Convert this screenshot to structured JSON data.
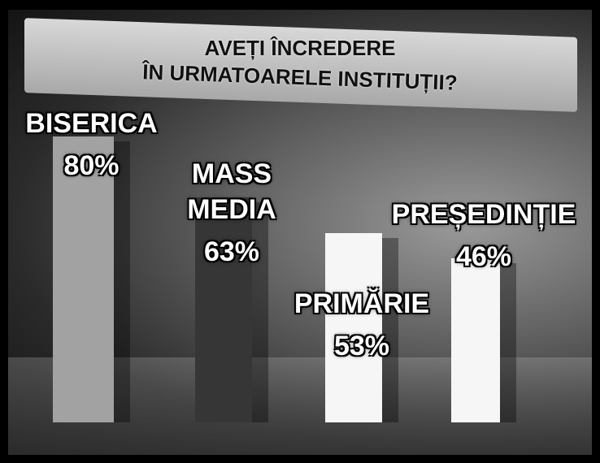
{
  "chart_data": {
    "type": "bar",
    "title": "AVEȚI ÎNCREDERE",
    "subtitle": "ÎN URMATOARELE INSTITUȚII?",
    "categories": [
      "BISERICA",
      "MASS MEDIA",
      "PRIMĂRIE",
      "PREȘEDINȚIE"
    ],
    "values": [
      80,
      63,
      53,
      46
    ],
    "value_labels": [
      "80%",
      "63%",
      "53%",
      "46%"
    ],
    "colors": [
      "#a2a2a2",
      "#363636",
      "#f6f6f6",
      "#f6f6f6"
    ]
  }
}
